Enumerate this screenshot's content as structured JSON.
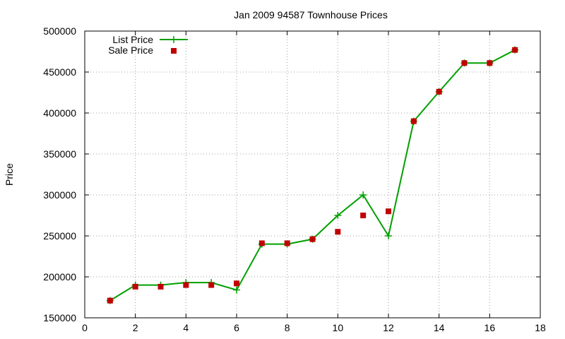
{
  "chart_data": {
    "type": "line",
    "title": "Jan 2009 94587 Townhouse Prices",
    "xlabel": "",
    "ylabel": "Price",
    "xlim": [
      0,
      18
    ],
    "ylim": [
      150000,
      500000
    ],
    "x_ticks": [
      0,
      2,
      4,
      6,
      8,
      10,
      12,
      14,
      16,
      18
    ],
    "y_ticks": [
      150000,
      200000,
      250000,
      300000,
      350000,
      400000,
      450000,
      500000
    ],
    "grid": true,
    "legend_position": "top-left",
    "series": [
      {
        "name": "List Price",
        "style": "line-with-plus-markers",
        "color": "#00a000",
        "points": [
          [
            1,
            171000
          ],
          [
            2,
            190000
          ],
          [
            3,
            190000
          ],
          [
            4,
            193000
          ],
          [
            5,
            193000
          ],
          [
            6,
            184000
          ],
          [
            7,
            240000
          ],
          [
            8,
            240000
          ],
          [
            9,
            246000
          ],
          [
            10,
            275000
          ],
          [
            11,
            300000
          ],
          [
            12,
            250000
          ],
          [
            13,
            390000
          ],
          [
            14,
            426000
          ],
          [
            15,
            461000
          ],
          [
            16,
            461000
          ],
          [
            17,
            477000
          ]
        ]
      },
      {
        "name": "Sale Price",
        "style": "square-markers",
        "color": "#c00000",
        "points": [
          [
            1,
            171000
          ],
          [
            2,
            188000
          ],
          [
            3,
            188000
          ],
          [
            4,
            190000
          ],
          [
            5,
            190000
          ],
          [
            6,
            192000
          ],
          [
            7,
            241000
          ],
          [
            8,
            241000
          ],
          [
            9,
            246000
          ],
          [
            10,
            255000
          ],
          [
            11,
            275000
          ],
          [
            12,
            280000
          ],
          [
            13,
            390000
          ],
          [
            14,
            426000
          ],
          [
            15,
            461000
          ],
          [
            16,
            461000
          ],
          [
            17,
            477000
          ]
        ]
      }
    ]
  }
}
